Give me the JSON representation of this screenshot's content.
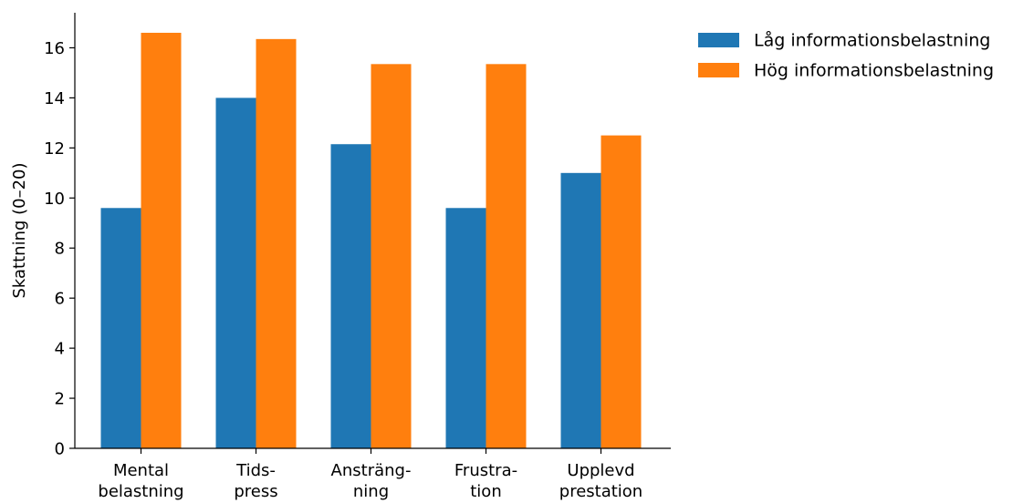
{
  "chart_data": {
    "type": "bar",
    "categories": [
      [
        "Mental",
        "belastning"
      ],
      [
        "Tids-",
        "press"
      ],
      [
        "Ansträng-",
        "ning"
      ],
      [
        "Frustra-",
        "tion"
      ],
      [
        "Upplevd",
        "prestation"
      ]
    ],
    "series": [
      {
        "name": "Låg informationsbelastning",
        "color": "#1f77b4",
        "values": [
          9.6,
          14.0,
          12.15,
          9.6,
          11.0
        ]
      },
      {
        "name": "Hög informationsbelastning",
        "color": "#ff7f0e",
        "values": [
          16.6,
          16.35,
          15.35,
          15.35,
          12.5
        ]
      }
    ],
    "xlabel": "",
    "ylabel": "Skattning (0–20)",
    "ylim": [
      0,
      17.4
    ],
    "yticks": [
      0,
      2,
      4,
      6,
      8,
      10,
      12,
      14,
      16
    ],
    "legend_position": "top-right outside plot",
    "grid": false
  }
}
